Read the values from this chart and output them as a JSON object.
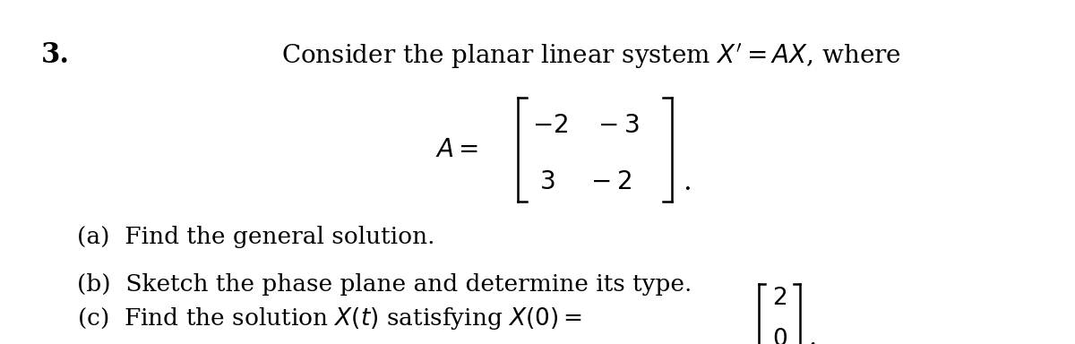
{
  "background_color": "#ffffff",
  "number_text": "3.",
  "number_fontsize": 22,
  "title_text": "Consider the planar linear system $X^{\\prime} = AX$, where",
  "title_fontsize": 20,
  "matrix_label_text": "$A =$",
  "matrix_fontsize": 20,
  "matrix_row1": "$-2 \\quad -3$",
  "matrix_row2": "$3 \\quad\\; -2$",
  "matrix_fontsize2": 20,
  "part_a_text": "(a)  Find the general solution.",
  "part_b_text": "(b)  Sketch the phase plane and determine its type.",
  "part_c_text": "(c)  Find the solution $X(t)$ satisfying $X(0) =$",
  "part_fontsize": 19,
  "vec_top_text": "$2$",
  "vec_bot_text": "$0$",
  "vec_fontsize": 19
}
